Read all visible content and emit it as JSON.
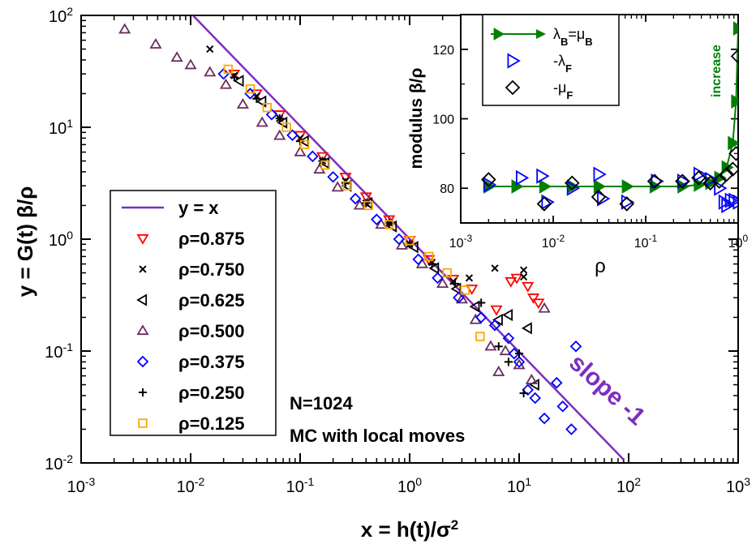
{
  "chart_data": [
    {
      "type": "scatter",
      "scale": "log-log",
      "xlabel": "x = h(t)/σ",
      "xlabel_sup": "2",
      "ylabel": "y = G(t)  β/ρ",
      "xlim": [
        0.001,
        1000
      ],
      "ylim": [
        0.01,
        100
      ],
      "x_tick_labels": [
        {
          "base": "10",
          "exp": "-3"
        },
        {
          "base": "10",
          "exp": "-2"
        },
        {
          "base": "10",
          "exp": "-1"
        },
        {
          "base": "10",
          "exp": "0"
        },
        {
          "base": "10",
          "exp": "1"
        },
        {
          "base": "10",
          "exp": "2"
        },
        {
          "base": "10",
          "exp": "3"
        }
      ],
      "y_tick_labels": [
        {
          "base": "10",
          "exp": "-2"
        },
        {
          "base": "10",
          "exp": "-1"
        },
        {
          "base": "10",
          "exp": "0"
        },
        {
          "base": "10",
          "exp": "1"
        },
        {
          "base": "10",
          "exp": "2"
        }
      ],
      "legend_position": "left",
      "reference_line": {
        "name": "y = x",
        "color": "#7b2fbe",
        "points": [
          [
            0.0105,
            100
          ],
          [
            90,
            0.0107
          ]
        ]
      },
      "series": [
        {
          "name": "ρ=0.875",
          "marker": "triangle-down",
          "color": "#ff0000",
          "points": [
            [
              0.025,
              30
            ],
            [
              0.04,
              20
            ],
            [
              0.065,
              13
            ],
            [
              0.1,
              8.5
            ],
            [
              0.16,
              5.5
            ],
            [
              0.26,
              3.6
            ],
            [
              0.4,
              2.4
            ],
            [
              0.65,
              1.5
            ],
            [
              1.0,
              0.98
            ],
            [
              1.5,
              0.66
            ],
            [
              2.5,
              0.44
            ],
            [
              3.7,
              0.36
            ],
            [
              6.2,
              0.235
            ],
            [
              8.4,
              0.42
            ],
            [
              9.5,
              0.45
            ],
            [
              12,
              0.38
            ],
            [
              13.5,
              0.3
            ],
            [
              15,
              0.27
            ]
          ]
        },
        {
          "name": "ρ=0.750",
          "marker": "x",
          "color": "#000000",
          "points": [
            [
              0.015,
              50
            ],
            [
              0.025,
              29
            ],
            [
              0.04,
              19
            ],
            [
              0.065,
              12
            ],
            [
              0.1,
              8
            ],
            [
              0.16,
              5
            ],
            [
              0.26,
              3.3
            ],
            [
              0.4,
              2.1
            ],
            [
              0.65,
              1.4
            ],
            [
              1.0,
              0.9
            ],
            [
              1.6,
              0.62
            ],
            [
              2.5,
              0.42
            ],
            [
              3.5,
              0.45
            ],
            [
              6.0,
              0.55
            ],
            [
              11,
              0.53
            ],
            [
              11,
              0.46
            ]
          ]
        },
        {
          "name": "ρ=0.625",
          "marker": "triangle-left",
          "color": "#000000",
          "points": [
            [
              0.028,
              26
            ],
            [
              0.045,
              17
            ],
            [
              0.07,
              11
            ],
            [
              0.11,
              7.5
            ],
            [
              0.17,
              4.8
            ],
            [
              0.27,
              3
            ],
            [
              0.42,
              2.1
            ],
            [
              0.7,
              1.3
            ],
            [
              1.1,
              0.85
            ],
            [
              1.7,
              0.55
            ],
            [
              2.7,
              0.36
            ],
            [
              4.0,
              0.25
            ],
            [
              6.5,
              0.19
            ],
            [
              8.0,
              0.21
            ],
            [
              12,
              0.16
            ],
            [
              14,
              0.05
            ]
          ]
        },
        {
          "name": "ρ=0.500",
          "marker": "triangle-up",
          "color": "#6b2d5c",
          "points": [
            [
              0.0025,
              75
            ],
            [
              0.0048,
              55
            ],
            [
              0.0075,
              42
            ],
            [
              0.01,
              36
            ],
            [
              0.015,
              31
            ],
            [
              0.021,
              24
            ],
            [
              0.03,
              16
            ],
            [
              0.045,
              11
            ],
            [
              0.065,
              8.4
            ],
            [
              0.1,
              6
            ],
            [
              0.15,
              4.2
            ],
            [
              0.22,
              2.9
            ],
            [
              0.35,
              2.0
            ],
            [
              0.55,
              1.35
            ],
            [
              0.85,
              0.88
            ],
            [
              1.3,
              0.6
            ],
            [
              2.0,
              0.4
            ],
            [
              3.0,
              0.29
            ],
            [
              4.0,
              0.19
            ],
            [
              5.5,
              0.11
            ],
            [
              6.5,
              0.065
            ],
            [
              7.5,
              0.1
            ],
            [
              8.5,
              0.009
            ],
            [
              10,
              0.075
            ],
            [
              13,
              0.055
            ],
            [
              17,
              0.24
            ]
          ]
        },
        {
          "name": "ρ=0.375",
          "marker": "diamond",
          "color": "#0000ff",
          "points": [
            [
              0.02,
              30
            ],
            [
              0.035,
              20
            ],
            [
              0.055,
              13
            ],
            [
              0.085,
              8.5
            ],
            [
              0.13,
              5.5
            ],
            [
              0.2,
              3.6
            ],
            [
              0.32,
              2.3
            ],
            [
              0.5,
              1.5
            ],
            [
              0.8,
              1.0
            ],
            [
              1.2,
              0.66
            ],
            [
              1.8,
              0.45
            ],
            [
              2.8,
              0.3
            ],
            [
              4.5,
              0.2
            ],
            [
              6,
              0.17
            ],
            [
              8,
              0.13
            ],
            [
              9,
              0.095
            ],
            [
              10,
              0.08
            ],
            [
              12,
              0.045
            ],
            [
              14,
              0.038
            ],
            [
              17,
              0.025
            ],
            [
              22,
              0.052
            ],
            [
              25,
              0.032
            ],
            [
              30,
              0.02
            ],
            [
              33,
              0.11
            ]
          ]
        },
        {
          "name": "ρ=0.250",
          "marker": "plus",
          "color": "#000000",
          "points": [
            [
              0.025,
              28
            ],
            [
              0.04,
              18
            ],
            [
              0.065,
              12
            ],
            [
              0.1,
              7.5
            ],
            [
              0.16,
              5
            ],
            [
              0.26,
              3.2
            ],
            [
              0.4,
              2.1
            ],
            [
              0.65,
              1.4
            ],
            [
              1.0,
              0.9
            ],
            [
              1.6,
              0.6
            ],
            [
              2.6,
              0.4
            ],
            [
              4.5,
              0.27
            ],
            [
              6.5,
              0.11
            ],
            [
              8.0,
              0.08
            ],
            [
              10,
              0.095
            ],
            [
              11,
              0.042
            ]
          ]
        },
        {
          "name": "ρ=0.125",
          "marker": "square",
          "color": "#ffa500",
          "points": [
            [
              0.022,
              33
            ],
            [
              0.035,
              22
            ],
            [
              0.05,
              15
            ],
            [
              0.075,
              10
            ],
            [
              0.11,
              7
            ],
            [
              0.17,
              4.6
            ],
            [
              0.27,
              3
            ],
            [
              0.42,
              2
            ],
            [
              0.65,
              1.35
            ],
            [
              1.0,
              0.97
            ],
            [
              1.5,
              0.7
            ],
            [
              2.2,
              0.5
            ],
            [
              3.2,
              0.35
            ],
            [
              4.4,
              0.135
            ]
          ]
        }
      ],
      "annotations": [
        "N=1024",
        "MC with local moves"
      ],
      "slope_annotation": {
        "text": "slope -1",
        "color": "#7b2fbe"
      }
    },
    {
      "type": "scatter",
      "scale": "log-x",
      "xlabel": "ρ",
      "ylabel": "modulus  β/ρ",
      "xlim": [
        0.001,
        1.0
      ],
      "ylim": [
        70,
        130
      ],
      "x_tick_labels": [
        {
          "base": "10",
          "exp": "-3"
        },
        {
          "base": "10",
          "exp": "-2"
        },
        {
          "base": "10",
          "exp": "-1"
        },
        {
          "base": "10",
          "exp": "0"
        }
      ],
      "y_tick_labels": [
        "80",
        "100",
        "120"
      ],
      "legend_position": "top-left",
      "series": [
        {
          "name": "λ",
          "sub": "B",
          "name2": "=μ",
          "sub2": "B",
          "marker": "triangle-right-filled",
          "color": "#008000",
          "connected": true,
          "points": [
            [
              0.002,
              80.5
            ],
            [
              0.004,
              80.5
            ],
            [
              0.008,
              80.5
            ],
            [
              0.016,
              80.5
            ],
            [
              0.031,
              80.5
            ],
            [
              0.0625,
              80.5
            ],
            [
              0.125,
              80.5
            ],
            [
              0.25,
              80.5
            ],
            [
              0.375,
              81
            ],
            [
              0.5,
              81.5
            ],
            [
              0.625,
              83
            ],
            [
              0.75,
              86
            ],
            [
              0.875,
              93
            ],
            [
              0.95,
              105
            ],
            [
              1.0,
              126
            ]
          ]
        },
        {
          "name": "-λ",
          "sub": "F",
          "marker": "triangle-right",
          "color": "#0000ff",
          "points": [
            [
              0.002,
              81
            ],
            [
              0.0045,
              83
            ],
            [
              0.0075,
              83.5
            ],
            [
              0.0085,
              76
            ],
            [
              0.016,
              80
            ],
            [
              0.031,
              84
            ],
            [
              0.034,
              77
            ],
            [
              0.062,
              76
            ],
            [
              0.13,
              82
            ],
            [
              0.25,
              82
            ],
            [
              0.375,
              84
            ],
            [
              0.5,
              82.5
            ],
            [
              0.625,
              80
            ],
            [
              0.7,
              76
            ],
            [
              0.75,
              75
            ],
            [
              0.82,
              76.5
            ],
            [
              0.9,
              76.5
            ],
            [
              1.0,
              76
            ]
          ]
        },
        {
          "name": "-μ",
          "sub": "F",
          "marker": "diamond",
          "color": "#000000",
          "points": [
            [
              0.002,
              82.5
            ],
            [
              0.008,
              75.5
            ],
            [
              0.016,
              81.5
            ],
            [
              0.031,
              77.5
            ],
            [
              0.0625,
              75.5
            ],
            [
              0.125,
              82
            ],
            [
              0.25,
              82
            ],
            [
              0.375,
              83
            ],
            [
              0.5,
              81.5
            ],
            [
              0.625,
              82
            ],
            [
              0.75,
              84
            ],
            [
              0.875,
              85.5
            ],
            [
              0.95,
              90
            ],
            [
              1.0,
              118
            ]
          ]
        }
      ],
      "annotation": {
        "text": "increase",
        "color": "#008000"
      }
    }
  ]
}
